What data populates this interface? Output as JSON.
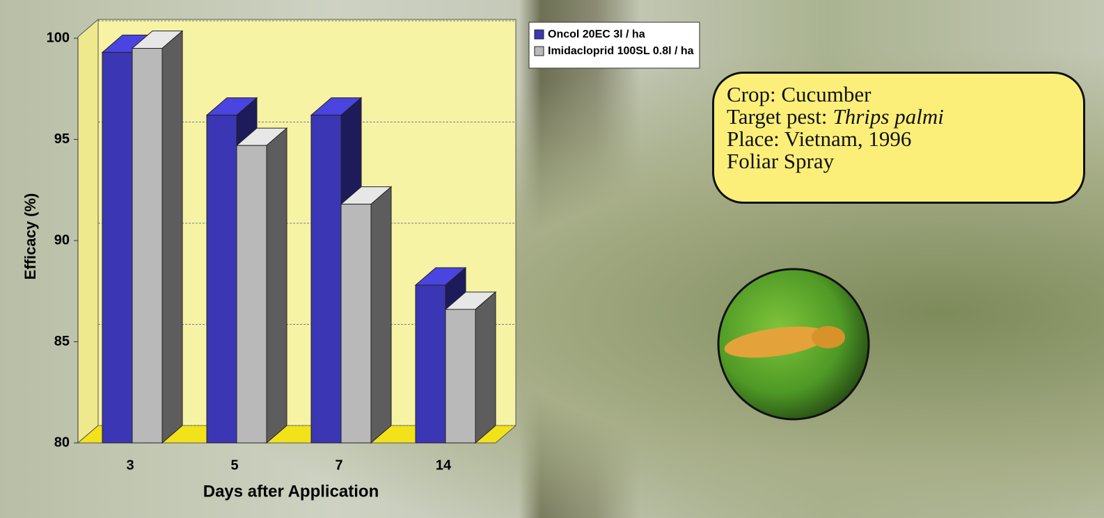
{
  "chart_data": {
    "type": "bar3d",
    "ylabel": "Efficacy (%)",
    "xlabel": "Days after Application",
    "categories": [
      "3",
      "5",
      "7",
      "14"
    ],
    "series": [
      {
        "name": "Oncol  20EC  3l / ha",
        "color": "#3b36b4",
        "values": [
          99.3,
          96.2,
          96.2,
          87.8
        ]
      },
      {
        "name": "Imidacloprid  100SL  0.8l / ha",
        "color": "#b9b9b9",
        "values": [
          99.5,
          94.7,
          91.8,
          86.6
        ]
      }
    ],
    "ylim": [
      80,
      100
    ],
    "yticks": [
      80,
      85,
      90,
      95,
      100
    ],
    "grid": true
  },
  "info": {
    "lines": [
      "Crop: Cucumber",
      "Place: Vietnam, 1996",
      "Foliar Spray"
    ],
    "pest_label": "Target pest:",
    "pest_name": "Thrips palmi"
  }
}
